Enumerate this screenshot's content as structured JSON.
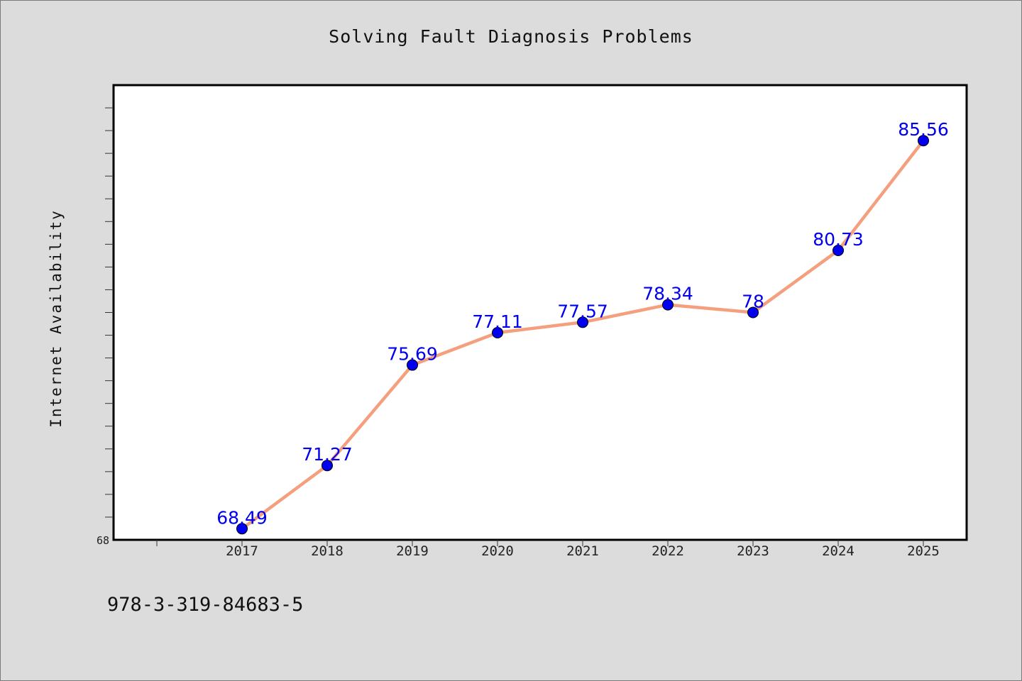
{
  "chart_data": {
    "type": "line",
    "title": "Solving Fault Diagnosis Problems",
    "ylabel": "Internet Availability",
    "xlabel": "",
    "categories": [
      "2017",
      "2018",
      "2019",
      "2020",
      "2021",
      "2022",
      "2023",
      "2024",
      "2025"
    ],
    "series": [
      {
        "values": [
          68.49,
          71.27,
          75.69,
          77.11,
          77.57,
          78.34,
          78.0,
          80.73,
          85.56
        ],
        "labels": [
          "68.49",
          "71.27",
          "75.69",
          "77.11",
          "77.57",
          "78.34",
          "78",
          "80.73",
          "85.56"
        ]
      }
    ],
    "ylim": [
      68,
      88
    ],
    "yticks": [
      "68"
    ],
    "grid": false,
    "colors": {
      "line": "#f4a07e",
      "marker": "#0000ee",
      "label": "#0000ee"
    }
  },
  "footer": {
    "isbn": "978-3-319-84683-5"
  }
}
